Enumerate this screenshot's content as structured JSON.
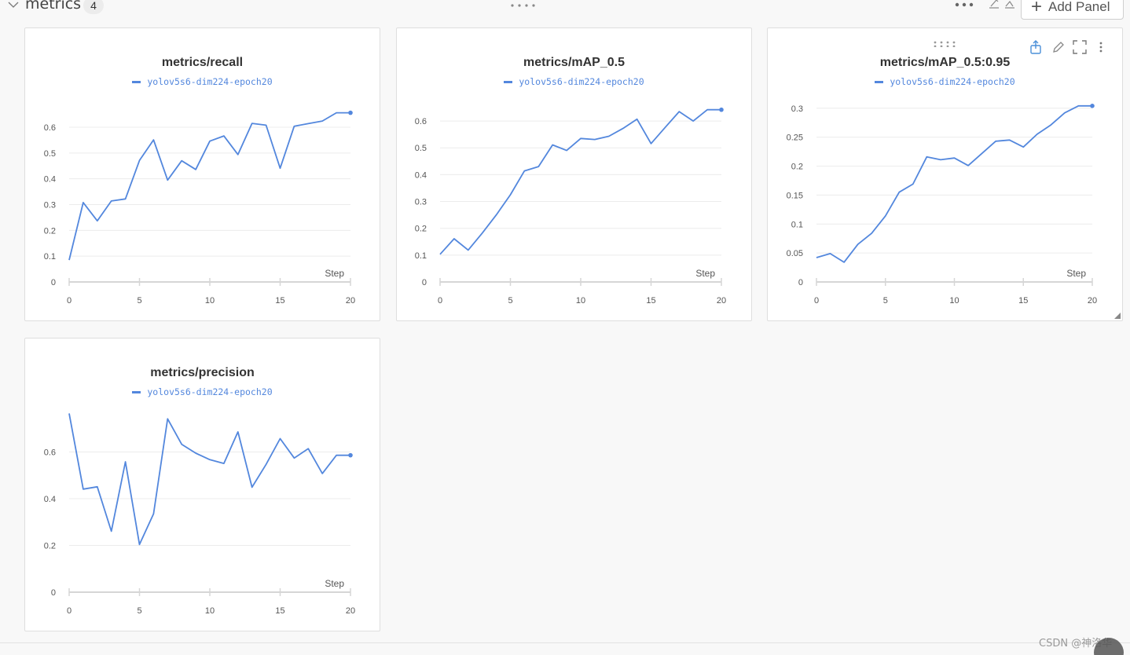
{
  "section": {
    "title": "metrics",
    "count": "4",
    "add_panel_label": "Add Panel"
  },
  "icons": {
    "collapse": "chevron-down-icon",
    "drag": "drag-handle-icon",
    "more": "more-horizontal-icon",
    "share": "share-icon",
    "edit": "pencil-icon",
    "fullscreen": "fullscreen-icon",
    "menu": "more-vertical-icon"
  },
  "colors": {
    "series": "#5387dd",
    "grid": "#ececec",
    "axis": "#d6d6d6"
  },
  "watermark": "CSDN @神洛华",
  "chart_data": [
    {
      "type": "line",
      "title": "metrics/recall",
      "xlabel": "Step",
      "ylabel": "",
      "xlim": [
        0,
        20
      ],
      "ylim": [
        0,
        0.67
      ],
      "xticks": [
        "0",
        "5",
        "10",
        "15",
        "20"
      ],
      "yticks": [
        "0",
        "0.1",
        "0.2",
        "0.3",
        "0.4",
        "0.5",
        "0.6"
      ],
      "ytick_values": [
        0,
        0.1,
        0.2,
        0.3,
        0.4,
        0.5,
        0.6
      ],
      "grid": true,
      "legend": "top-center",
      "series": [
        {
          "name": "yolov5s6-dim224-epoch20",
          "x": [
            0,
            1,
            2,
            3,
            4,
            5,
            6,
            7,
            8,
            9,
            10,
            11,
            12,
            13,
            14,
            15,
            16,
            17,
            18,
            19,
            20
          ],
          "y": [
            0.085,
            0.308,
            0.237,
            0.314,
            0.322,
            0.471,
            0.551,
            0.395,
            0.47,
            0.436,
            0.546,
            0.566,
            0.494,
            0.615,
            0.608,
            0.441,
            0.604,
            0.614,
            0.624,
            0.656,
            0.656
          ]
        }
      ]
    },
    {
      "type": "line",
      "title": "metrics/mAP_0.5",
      "xlabel": "Step",
      "ylabel": "",
      "xlim": [
        0,
        20
      ],
      "ylim": [
        0,
        0.65
      ],
      "xticks": [
        "0",
        "5",
        "10",
        "15",
        "20"
      ],
      "yticks": [
        "0",
        "0.1",
        "0.2",
        "0.3",
        "0.4",
        "0.5",
        "0.6"
      ],
      "ytick_values": [
        0,
        0.1,
        0.2,
        0.3,
        0.4,
        0.5,
        0.6
      ],
      "grid": true,
      "legend": "top-center",
      "series": [
        {
          "name": "yolov5s6-dim224-epoch20",
          "x": [
            0,
            1,
            2,
            3,
            4,
            5,
            6,
            7,
            8,
            9,
            10,
            11,
            12,
            13,
            14,
            15,
            16,
            17,
            18,
            19,
            20
          ],
          "y": [
            0.103,
            0.161,
            0.119,
            0.182,
            0.25,
            0.325,
            0.414,
            0.43,
            0.511,
            0.49,
            0.535,
            0.531,
            0.543,
            0.572,
            0.607,
            0.516,
            0.576,
            0.635,
            0.6,
            0.642,
            0.642
          ]
        }
      ]
    },
    {
      "type": "line",
      "title": "metrics/mAP_0.5:0.95",
      "xlabel": "Step",
      "ylabel": "",
      "xlim": [
        0,
        20
      ],
      "ylim": [
        0,
        0.32
      ],
      "xticks": [
        "0",
        "5",
        "10",
        "15",
        "20"
      ],
      "yticks": [
        "0",
        "0.05",
        "0.1",
        "0.15",
        "0.2",
        "0.25",
        "0.3"
      ],
      "ytick_values": [
        0,
        0.05,
        0.1,
        0.15,
        0.2,
        0.25,
        0.3
      ],
      "grid": true,
      "legend": "top-center",
      "series": [
        {
          "name": "yolov5s6-dim224-epoch20",
          "x": [
            0,
            1,
            2,
            3,
            4,
            5,
            6,
            7,
            8,
            9,
            10,
            11,
            12,
            13,
            14,
            15,
            16,
            17,
            18,
            19,
            20
          ],
          "y": [
            0.042,
            0.049,
            0.034,
            0.065,
            0.084,
            0.114,
            0.155,
            0.169,
            0.216,
            0.211,
            0.214,
            0.201,
            0.222,
            0.243,
            0.245,
            0.233,
            0.255,
            0.271,
            0.292,
            0.304,
            0.304
          ]
        }
      ]
    },
    {
      "type": "line",
      "title": "metrics/precision",
      "xlabel": "Step",
      "ylabel": "",
      "xlim": [
        0,
        20
      ],
      "ylim": [
        0,
        0.8
      ],
      "xticks": [
        "0",
        "5",
        "10",
        "15",
        "20"
      ],
      "yticks": [
        "0",
        "0.2",
        "0.4",
        "0.6"
      ],
      "ytick_values": [
        0,
        0.2,
        0.4,
        0.6
      ],
      "grid": true,
      "legend": "top-center",
      "series": [
        {
          "name": "yolov5s6-dim224-epoch20",
          "x": [
            0,
            1,
            2,
            3,
            4,
            5,
            6,
            7,
            8,
            9,
            10,
            11,
            12,
            13,
            14,
            15,
            16,
            17,
            18,
            19,
            20
          ],
          "y": [
            0.765,
            0.441,
            0.451,
            0.261,
            0.558,
            0.204,
            0.335,
            0.742,
            0.633,
            0.595,
            0.567,
            0.551,
            0.686,
            0.449,
            0.547,
            0.657,
            0.574,
            0.614,
            0.508,
            0.586,
            0.586
          ]
        }
      ]
    }
  ]
}
